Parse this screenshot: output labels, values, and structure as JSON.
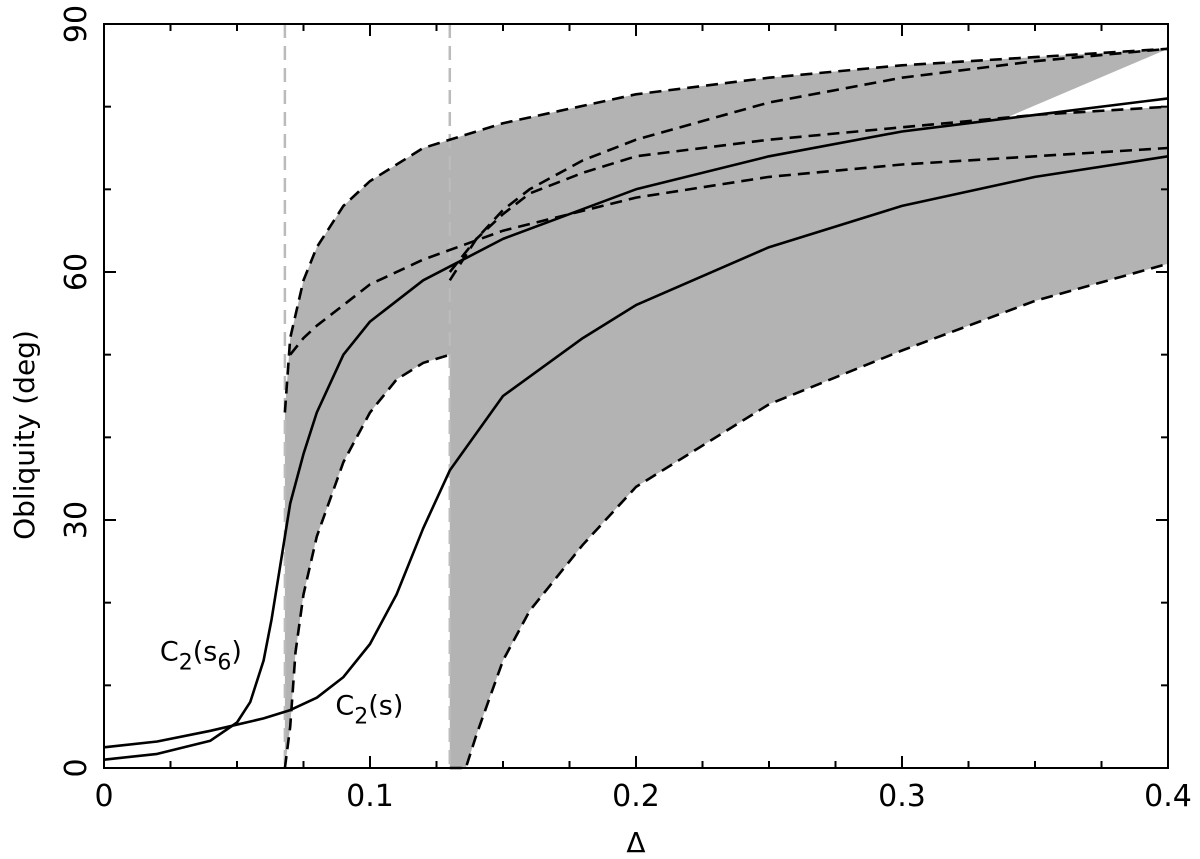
{
  "chart_data": {
    "type": "line",
    "xlabel": "Δ",
    "ylabel": "Obliquity (deg)",
    "xlim": [
      0,
      0.4
    ],
    "ylim": [
      0,
      90
    ],
    "x_ticks": [
      "0",
      "0.1",
      "0.2",
      "0.3",
      "0.4"
    ],
    "y_ticks": [
      "0",
      "30",
      "60",
      "90"
    ],
    "grid": false,
    "legend": "none",
    "colors": {
      "curve": "#000000",
      "band": "#b3b3b3",
      "marker": "#bbbbbb"
    },
    "vertical_markers": [
      0.068,
      0.13
    ],
    "bands": [
      {
        "upper_x": [
          0.068,
          0.07,
          0.075,
          0.08,
          0.09,
          0.1,
          0.12,
          0.15,
          0.2,
          0.25,
          0.3,
          0.35,
          0.4
        ],
        "upper_y": [
          43,
          52,
          59,
          63,
          68,
          71,
          75,
          78,
          81.5,
          83.5,
          85,
          86,
          87
        ],
        "lower_x": [
          0.068,
          0.07,
          0.072,
          0.075,
          0.08,
          0.09,
          0.1,
          0.11,
          0.12,
          0.13
        ],
        "lower_y": [
          0,
          5,
          14,
          21,
          28,
          37,
          43,
          47,
          49,
          50
        ]
      },
      {
        "upper_x": [
          0.13,
          0.14,
          0.15,
          0.16,
          0.18,
          0.2,
          0.25,
          0.3,
          0.35,
          0.4
        ],
        "upper_y": [
          60,
          64,
          67,
          69.5,
          72,
          74,
          76,
          77.5,
          79,
          80
        ],
        "lower_x": [
          0.13,
          0.136,
          0.14,
          0.15,
          0.16,
          0.18,
          0.2,
          0.25,
          0.3,
          0.35,
          0.4
        ],
        "lower_y": [
          0,
          0,
          4,
          13,
          19,
          27,
          34,
          44,
          50.5,
          56.5,
          61
        ]
      }
    ],
    "series": [
      {
        "name": "C2(s6)",
        "style": "solid",
        "x": [
          0,
          0.02,
          0.04,
          0.05,
          0.055,
          0.06,
          0.063,
          0.066,
          0.068,
          0.07,
          0.075,
          0.08,
          0.09,
          0.1,
          0.12,
          0.15,
          0.2,
          0.25,
          0.3,
          0.35,
          0.4
        ],
        "y": [
          1,
          1.7,
          3.3,
          5.5,
          8,
          13,
          18,
          24,
          28,
          32,
          38,
          43,
          50,
          54,
          59,
          64,
          70,
          74,
          77,
          79,
          81
        ]
      },
      {
        "name": "C2(s)",
        "style": "solid",
        "x": [
          0,
          0.02,
          0.04,
          0.06,
          0.07,
          0.08,
          0.09,
          0.1,
          0.11,
          0.12,
          0.13,
          0.15,
          0.18,
          0.2,
          0.25,
          0.3,
          0.35,
          0.4
        ],
        "y": [
          2.5,
          3.2,
          4.5,
          6,
          7,
          8.5,
          11,
          15,
          21,
          29,
          36,
          45,
          52,
          56,
          63,
          68,
          71.5,
          74
        ]
      },
      {
        "style": "dashed",
        "x": [
          0.13,
          0.14,
          0.15,
          0.16,
          0.18,
          0.2,
          0.25,
          0.3,
          0.35,
          0.4
        ],
        "y": [
          59,
          64,
          67.5,
          70,
          73.5,
          76,
          80.5,
          83.5,
          85.5,
          87
        ]
      },
      {
        "style": "dashed",
        "x": [
          0.07,
          0.075,
          0.08,
          0.09,
          0.1,
          0.12,
          0.15,
          0.2,
          0.25,
          0.3,
          0.35,
          0.4
        ],
        "y": [
          50,
          52,
          53.5,
          56,
          58.5,
          61.5,
          65,
          69,
          71.5,
          73,
          74,
          75
        ]
      }
    ],
    "annotations": [
      {
        "label_base": "C",
        "label_sub1": "2",
        "label_mid": "(s",
        "label_sub2": "6",
        "label_end": ")",
        "x": 0.021,
        "y": 13
      },
      {
        "label_base": "C",
        "label_sub1": "2",
        "label_mid": "(s)",
        "x": 0.087,
        "y": 6.5
      }
    ]
  }
}
